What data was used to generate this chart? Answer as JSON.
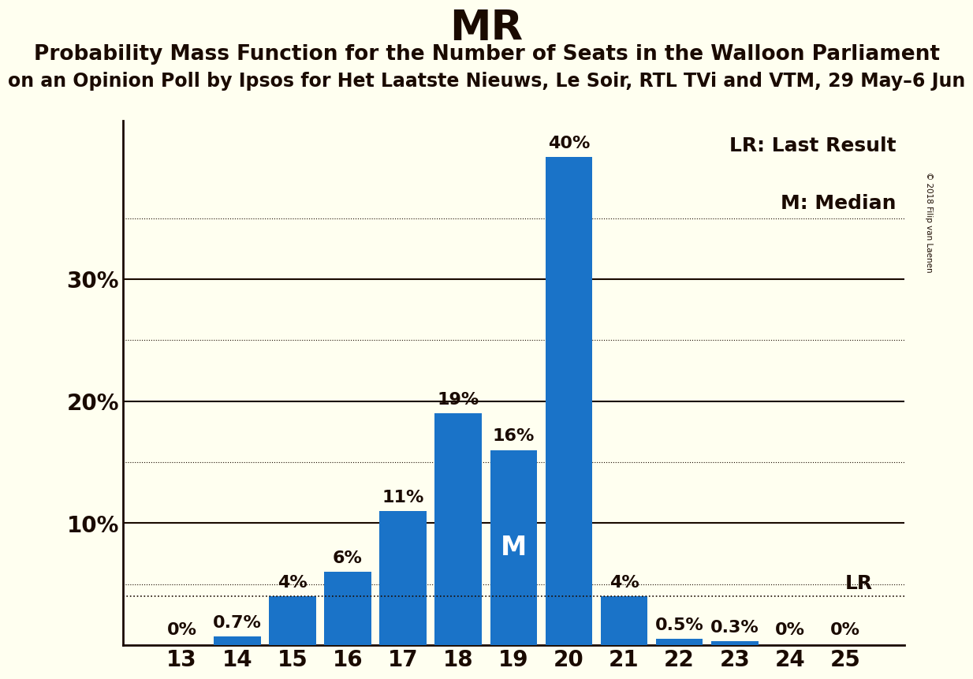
{
  "title": "MR",
  "subtitle1": "Probability Mass Function for the Number of Seats in the Walloon Parliament",
  "subtitle2": "on an Opinion Poll by Ipsos for Het Laatste Nieuws, Le Soir, RTL TVi and VTM, 29 May–6 Jun",
  "copyright": "© 2018 Filip van Laenen",
  "categories": [
    13,
    14,
    15,
    16,
    17,
    18,
    19,
    20,
    21,
    22,
    23,
    24,
    25
  ],
  "values": [
    0.0,
    0.7,
    4.0,
    6.0,
    11.0,
    19.0,
    16.0,
    40.0,
    4.0,
    0.5,
    0.3,
    0.0,
    0.0
  ],
  "labels": [
    "0%",
    "0.7%",
    "4%",
    "6%",
    "11%",
    "19%",
    "16%",
    "40%",
    "4%",
    "0.5%",
    "0.3%",
    "0%",
    "0%"
  ],
  "bar_color": "#1a73c8",
  "background_color": "#fffff0",
  "text_color": "#1a0a00",
  "median_seat": 19,
  "lr_value": 4.0,
  "lr_label": "LR",
  "median_label": "M",
  "ylim": [
    0,
    43
  ],
  "major_yticks": [
    10,
    20,
    30
  ],
  "major_ytick_labels": [
    "10%",
    "20%",
    "30%"
  ],
  "minor_yticks": [
    5,
    15,
    25,
    35
  ],
  "legend_lr": "LR: Last Result",
  "legend_m": "M: Median",
  "title_fontsize": 38,
  "subtitle1_fontsize": 19,
  "subtitle2_fontsize": 17,
  "axis_label_fontsize": 20,
  "bar_label_fontsize": 16,
  "legend_fontsize": 18,
  "median_label_fontsize": 24
}
